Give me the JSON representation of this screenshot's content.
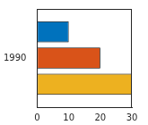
{
  "chart_data": {
    "type": "bar",
    "orientation": "horizontal",
    "categories": [
      "1990"
    ],
    "series": [
      {
        "color": "#0072bd",
        "values": [
          10
        ]
      },
      {
        "color": "#d95319",
        "values": [
          20
        ]
      },
      {
        "color": "#edb120",
        "values": [
          30
        ]
      }
    ],
    "xlim": [
      0,
      30
    ],
    "xticks": [
      0,
      10,
      20,
      30
    ],
    "grid": false
  }
}
